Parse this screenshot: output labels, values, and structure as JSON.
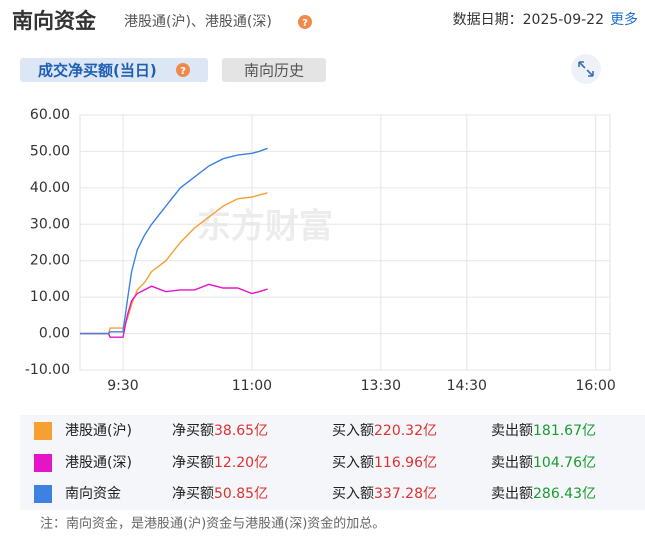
{
  "header": {
    "title": "南向资金",
    "subtitle": "港股通(沪)、港股通(深)",
    "date": "数据日期：2025-09-22",
    "more": "更多"
  },
  "tabs": [
    "成交净买额(当日)",
    "南向历史"
  ],
  "watermark": "东方财富",
  "chart_data": {
    "type": "line",
    "x": [
      0,
      20,
      21,
      30,
      33,
      36,
      40,
      45,
      50,
      60,
      70,
      80,
      90,
      100,
      110,
      120,
      125,
      131
    ],
    "xlim": [
      0,
      370
    ],
    "xticks": [
      {
        "value": 30,
        "label": "9:30"
      },
      {
        "value": 120,
        "label": "11:00"
      },
      {
        "value": 210,
        "label": "13:30"
      },
      {
        "value": 270,
        "label": "14:30"
      },
      {
        "value": 360,
        "label": "16:00"
      }
    ],
    "ylim": [
      -10,
      60
    ],
    "yticks": [
      {
        "value": 60,
        "label": "60.00"
      },
      {
        "value": 50,
        "label": "50.00"
      },
      {
        "value": 40,
        "label": "40.00"
      },
      {
        "value": 30,
        "label": "30.00"
      },
      {
        "value": 20,
        "label": "20.00"
      },
      {
        "value": 10,
        "label": "10.00"
      },
      {
        "value": 0,
        "label": "0.00"
      },
      {
        "value": -10,
        "label": "-10.00"
      }
    ],
    "grid": true,
    "series": [
      {
        "name": "港股通(沪)",
        "color": "#f5a030",
        "values": [
          0,
          0,
          1.5,
          1.5,
          4,
          8,
          12,
          14,
          17,
          20,
          25,
          29,
          32,
          35,
          37,
          37.5,
          38,
          38.65
        ]
      },
      {
        "name": "港股通(深)",
        "color": "#e614c8",
        "values": [
          0,
          0,
          -1,
          -1,
          5,
          9,
          11,
          12,
          13,
          11.5,
          12,
          12,
          13.5,
          12.5,
          12.5,
          11,
          11.5,
          12.2
        ]
      },
      {
        "name": "南向资金",
        "color": "#3d82e0",
        "values": [
          0,
          0,
          0.5,
          0.5,
          9,
          17,
          23,
          27,
          30,
          35,
          40,
          43,
          46,
          48,
          49,
          49.5,
          50,
          50.85
        ]
      }
    ]
  },
  "summary": {
    "labels": [
      "净买额",
      "买入额",
      "卖出额"
    ],
    "rows": [
      [
        "38.65亿",
        "220.32亿",
        "181.67亿"
      ],
      [
        "12.20亿",
        "116.96亿",
        "104.76亿"
      ],
      [
        "50.85亿",
        "337.28亿",
        "286.43亿"
      ]
    ]
  },
  "note": "注：南向资金，是港股通(沪)资金与港股通(深)资金的加总。"
}
